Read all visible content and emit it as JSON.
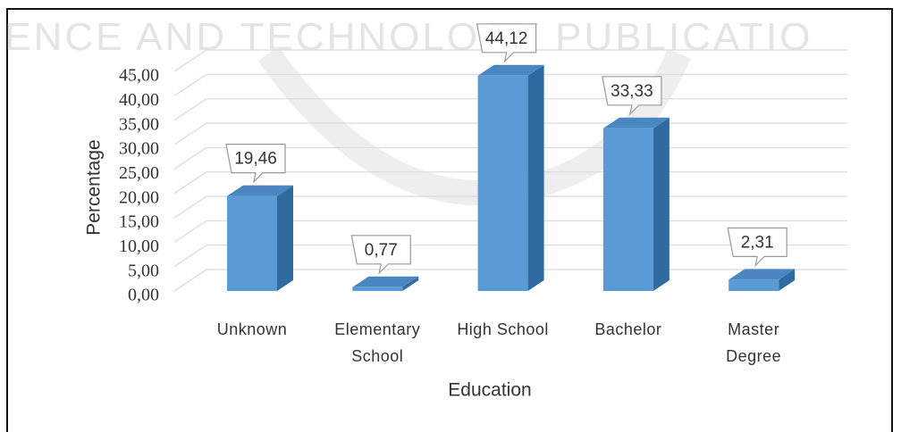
{
  "watermark": "IENCE AND TECHNOLOGY PUBLICATIO",
  "chart_data": {
    "type": "bar3d",
    "categories": [
      "Unknown",
      "Elementary School",
      "High School",
      "Bachelor",
      "Master Degree"
    ],
    "values": [
      19.46,
      0.77,
      44.12,
      33.33,
      2.31
    ],
    "value_labels": [
      "19,46",
      "0,77",
      "44,12",
      "33,33",
      "2,31"
    ],
    "color": "#5b9bd5",
    "xlabel": "Education",
    "ylabel": "Percentage",
    "ylim": [
      0,
      45
    ],
    "yticks": [
      {
        "value": 0,
        "label": "0,00"
      },
      {
        "value": 5,
        "label": "5,00"
      },
      {
        "value": 10,
        "label": "10,00"
      },
      {
        "value": 15,
        "label": "15,00"
      },
      {
        "value": 20,
        "label": "20,00"
      },
      {
        "value": 25,
        "label": "25,00"
      },
      {
        "value": 30,
        "label": "30,00"
      },
      {
        "value": 35,
        "label": "35,00"
      },
      {
        "value": 40,
        "label": "40,00"
      },
      {
        "value": 45,
        "label": "45,00"
      }
    ],
    "grid": true
  }
}
